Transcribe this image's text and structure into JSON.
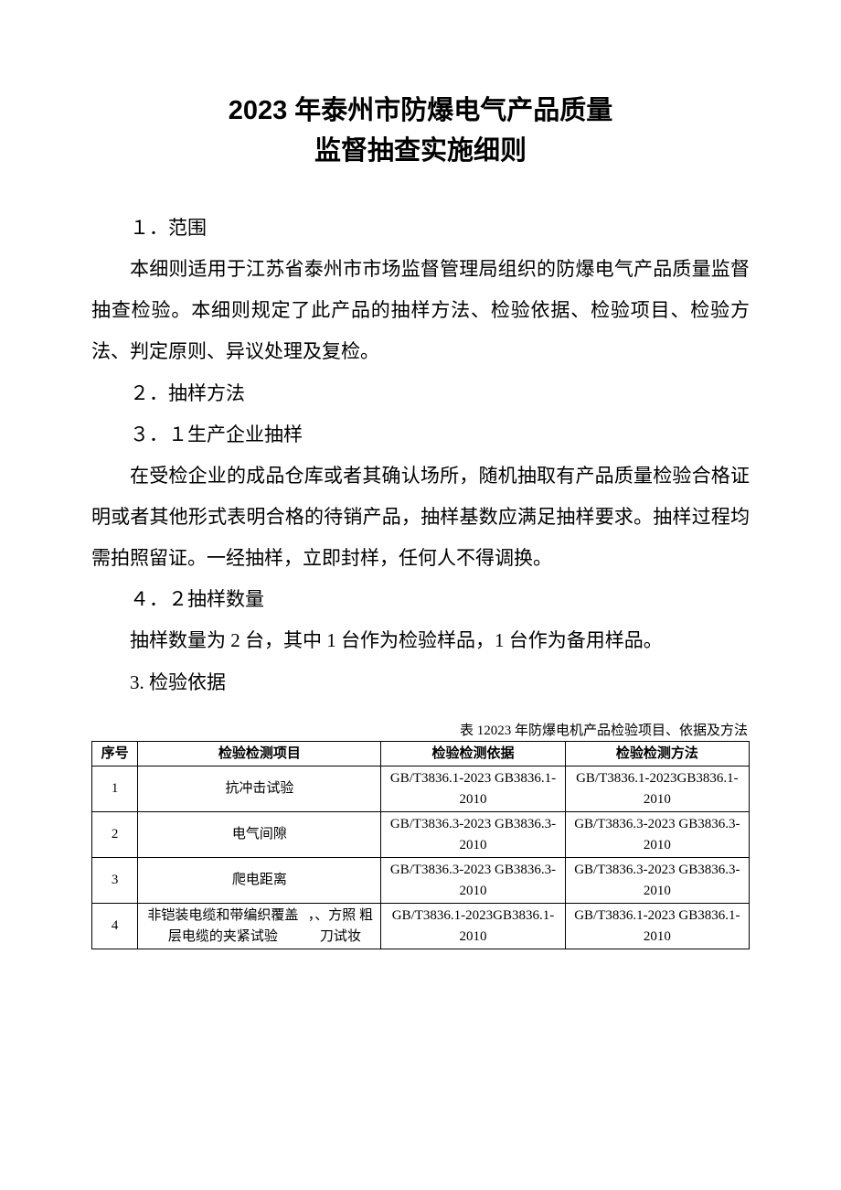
{
  "title_line1": "2023 年泰州市防爆电气产品质量",
  "title_line2": "监督抽查实施细则",
  "sections": {
    "s1_heading": "１．范围",
    "s1_body": "本细则适用于江苏省泰州市市场监督管理局组织的防爆电气产品质量监督抽查检验。本细则规定了此产品的抽样方法、检验依据、检验项目、检验方法、判定原则、异议处理及复检。",
    "s2_heading": "２．抽样方法",
    "s21_heading": "３．１生产企业抽样",
    "s21_body": "在受检企业的成品仓库或者其确认场所，随机抽取有产品质量检验合格证明或者其他形式表明合格的待销产品，抽样基数应满足抽样要求。抽样过程均需拍照留证。一经抽样，立即封样，任何人不得调换。",
    "s22_heading": "４．２抽样数量",
    "s22_body": "抽样数量为 2 台，其中 1 台作为检验样品，1 台作为备用样品。",
    "s3_heading": "3. 检验依据"
  },
  "table": {
    "caption": "表 12023 年防爆电机产品检验项目、依据及方法",
    "headers": {
      "seq": "序号",
      "item": "检验检测项目",
      "basis": "检验检测依据",
      "method": "检验检测方法"
    },
    "rows": [
      {
        "seq": "1",
        "item": "抗冲击试验",
        "basis": "GB/T3836.1-2023 GB3836.1-2010",
        "method": "GB/T3836.1-2023GB3836.1-2010"
      },
      {
        "seq": "2",
        "item": "电气间隙",
        "basis": "GB/T3836.3-2023 GB3836.3-2010",
        "method": "GB/T3836.3-2023 GB3836.3-2010"
      },
      {
        "seq": "3",
        "item": "爬电距离",
        "basis": "GB/T3836.3-2023 GB3836.3-2010",
        "method": "GB/T3836.3-2023 GB3836.3-2010"
      },
      {
        "seq": "4",
        "item_left": "非铠装电缆和带编织覆盖层电缆的夹紧试验",
        "item_right": "，、方照 粗刀试妆",
        "basis": "GB/T3836.1-2023GB3836.1-2010",
        "method": "GB/T3836.1-2023 GB3836.1-2010"
      }
    ]
  }
}
